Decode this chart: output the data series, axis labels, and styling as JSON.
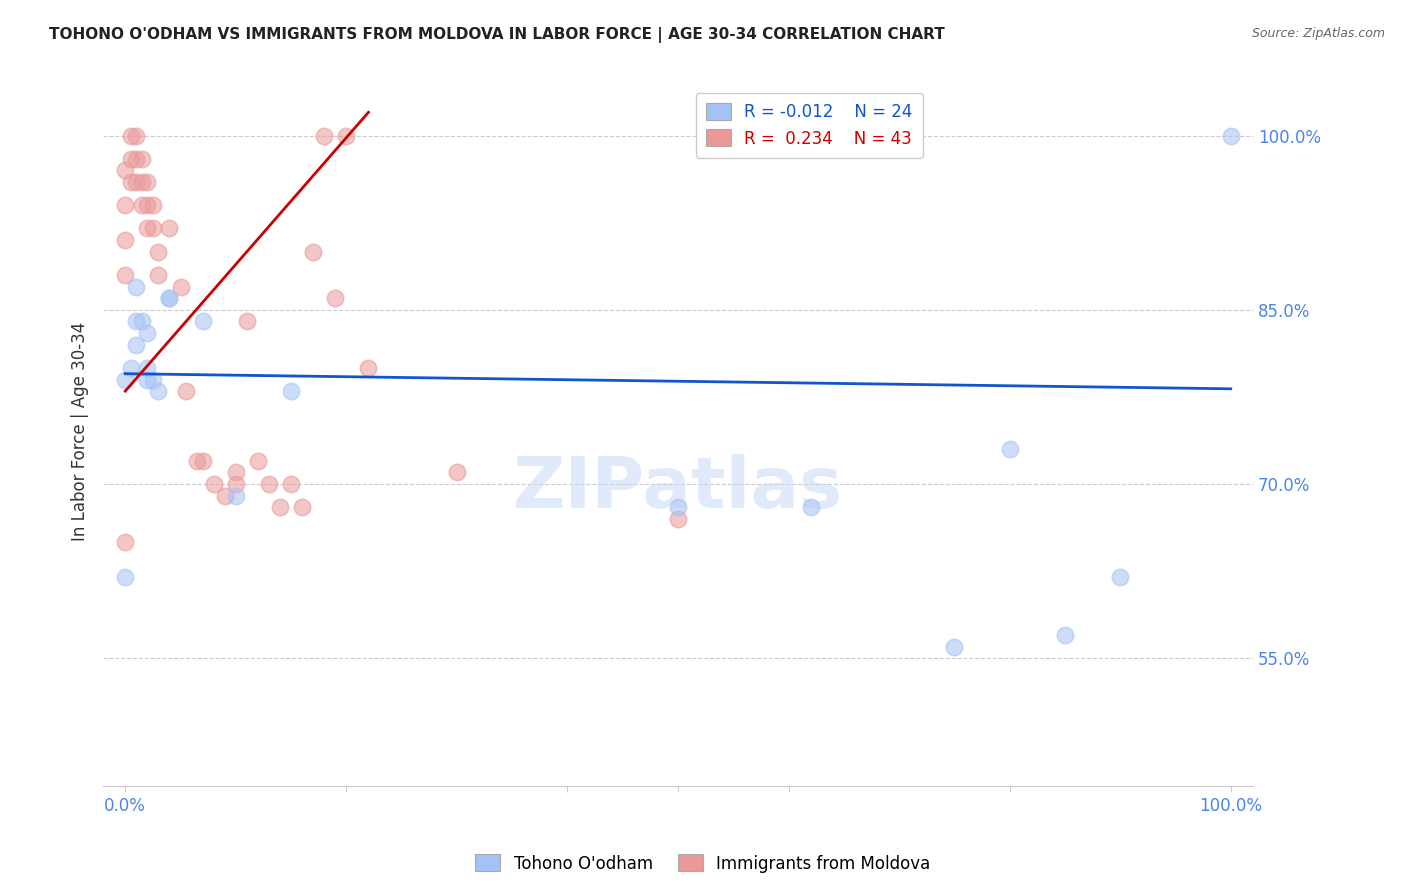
{
  "title": "TOHONO O'ODHAM VS IMMIGRANTS FROM MOLDOVA IN LABOR FORCE | AGE 30-34 CORRELATION CHART",
  "source": "Source: ZipAtlas.com",
  "ylabel": "In Labor Force | Age 30-34",
  "xlim": [
    -0.02,
    1.02
  ],
  "ylim": [
    0.44,
    1.05
  ],
  "yticks": [
    0.55,
    0.7,
    0.85,
    1.0
  ],
  "ytick_labels": [
    "55.0%",
    "70.0%",
    "85.0%",
    "100.0%"
  ],
  "legend_R_blue": "-0.012",
  "legend_N_blue": "24",
  "legend_R_pink": "0.234",
  "legend_N_pink": "43",
  "blue_color": "#a4c2f4",
  "pink_color": "#ea9999",
  "trend_blue_color": "#1155cc",
  "trend_pink_color": "#cc0000",
  "axis_label_color": "#4a86e8",
  "watermark": "ZIPatlas",
  "blue_scatter_x": [
    0.0,
    0.01,
    0.01,
    0.02,
    0.02,
    0.03,
    0.04,
    0.07,
    0.1,
    0.15,
    0.5,
    0.62,
    0.75,
    0.8,
    0.85,
    0.9,
    1.0,
    0.0,
    0.005,
    0.01,
    0.015,
    0.02,
    0.025,
    0.04
  ],
  "blue_scatter_y": [
    0.79,
    0.87,
    0.84,
    0.83,
    0.79,
    0.78,
    0.86,
    0.84,
    0.69,
    0.78,
    0.68,
    0.68,
    0.56,
    0.73,
    0.57,
    0.62,
    1.0,
    0.62,
    0.8,
    0.82,
    0.84,
    0.8,
    0.79,
    0.86
  ],
  "pink_scatter_x": [
    0.0,
    0.0,
    0.0,
    0.0,
    0.005,
    0.005,
    0.005,
    0.01,
    0.01,
    0.01,
    0.015,
    0.015,
    0.015,
    0.02,
    0.02,
    0.02,
    0.025,
    0.025,
    0.03,
    0.03,
    0.04,
    0.05,
    0.055,
    0.065,
    0.07,
    0.08,
    0.09,
    0.1,
    0.1,
    0.11,
    0.12,
    0.13,
    0.14,
    0.15,
    0.16,
    0.17,
    0.18,
    0.19,
    0.2,
    0.22,
    0.3,
    0.5,
    0.0
  ],
  "pink_scatter_y": [
    0.97,
    0.94,
    0.91,
    0.88,
    1.0,
    0.98,
    0.96,
    1.0,
    0.98,
    0.96,
    0.98,
    0.96,
    0.94,
    0.96,
    0.94,
    0.92,
    0.94,
    0.92,
    0.9,
    0.88,
    0.92,
    0.87,
    0.78,
    0.72,
    0.72,
    0.7,
    0.69,
    0.71,
    0.7,
    0.84,
    0.72,
    0.7,
    0.68,
    0.7,
    0.68,
    0.9,
    1.0,
    0.86,
    1.0,
    0.8,
    0.71,
    0.67,
    0.65
  ],
  "blue_trend_x": [
    0.0,
    1.0
  ],
  "blue_trend_y": [
    0.795,
    0.782
  ],
  "pink_trend_x": [
    0.0,
    0.22
  ],
  "pink_trend_y": [
    0.78,
    1.02
  ]
}
